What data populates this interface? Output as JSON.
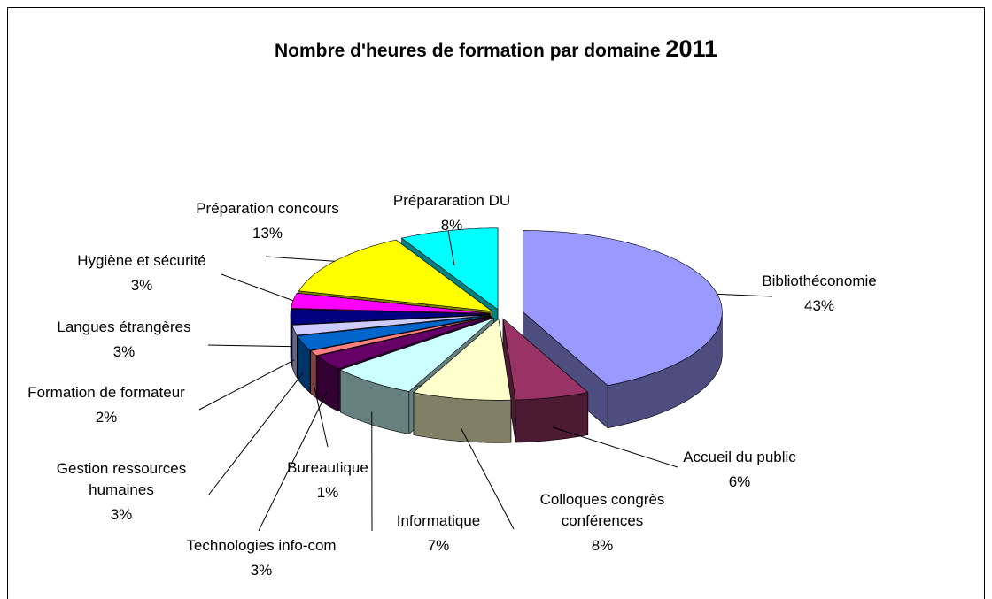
{
  "chart_data": {
    "type": "pie3d",
    "title": "Nombre d'heures de formation par domaine",
    "title_year": "2011",
    "categories": [
      "Bibliothéconomie",
      "Accueil du public",
      "Colloques congrès\nconférences",
      "Informatique",
      "Technologies info-com",
      "Bureautique",
      "Gestion ressources\nhumaines",
      "Formation de formateur",
      "Langues étrangères",
      "Hygiène et sécurité",
      "Préparation concours",
      "Prépararation DU"
    ],
    "values": [
      43,
      6,
      8,
      7,
      3,
      1,
      3,
      2,
      3,
      3,
      13,
      8
    ],
    "value_labels": [
      "43%",
      "6%",
      "8%",
      "7%",
      "3%",
      "1%",
      "3%",
      "2%",
      "3%",
      "3%",
      "13%",
      "8%"
    ],
    "colors": [
      "#9999ff",
      "#993366",
      "#ffffcc",
      "#ccffff",
      "#660066",
      "#ff8080",
      "#0066cc",
      "#ccccff",
      "#000080",
      "#ff00ff",
      "#ffff00",
      "#00ffff"
    ]
  }
}
